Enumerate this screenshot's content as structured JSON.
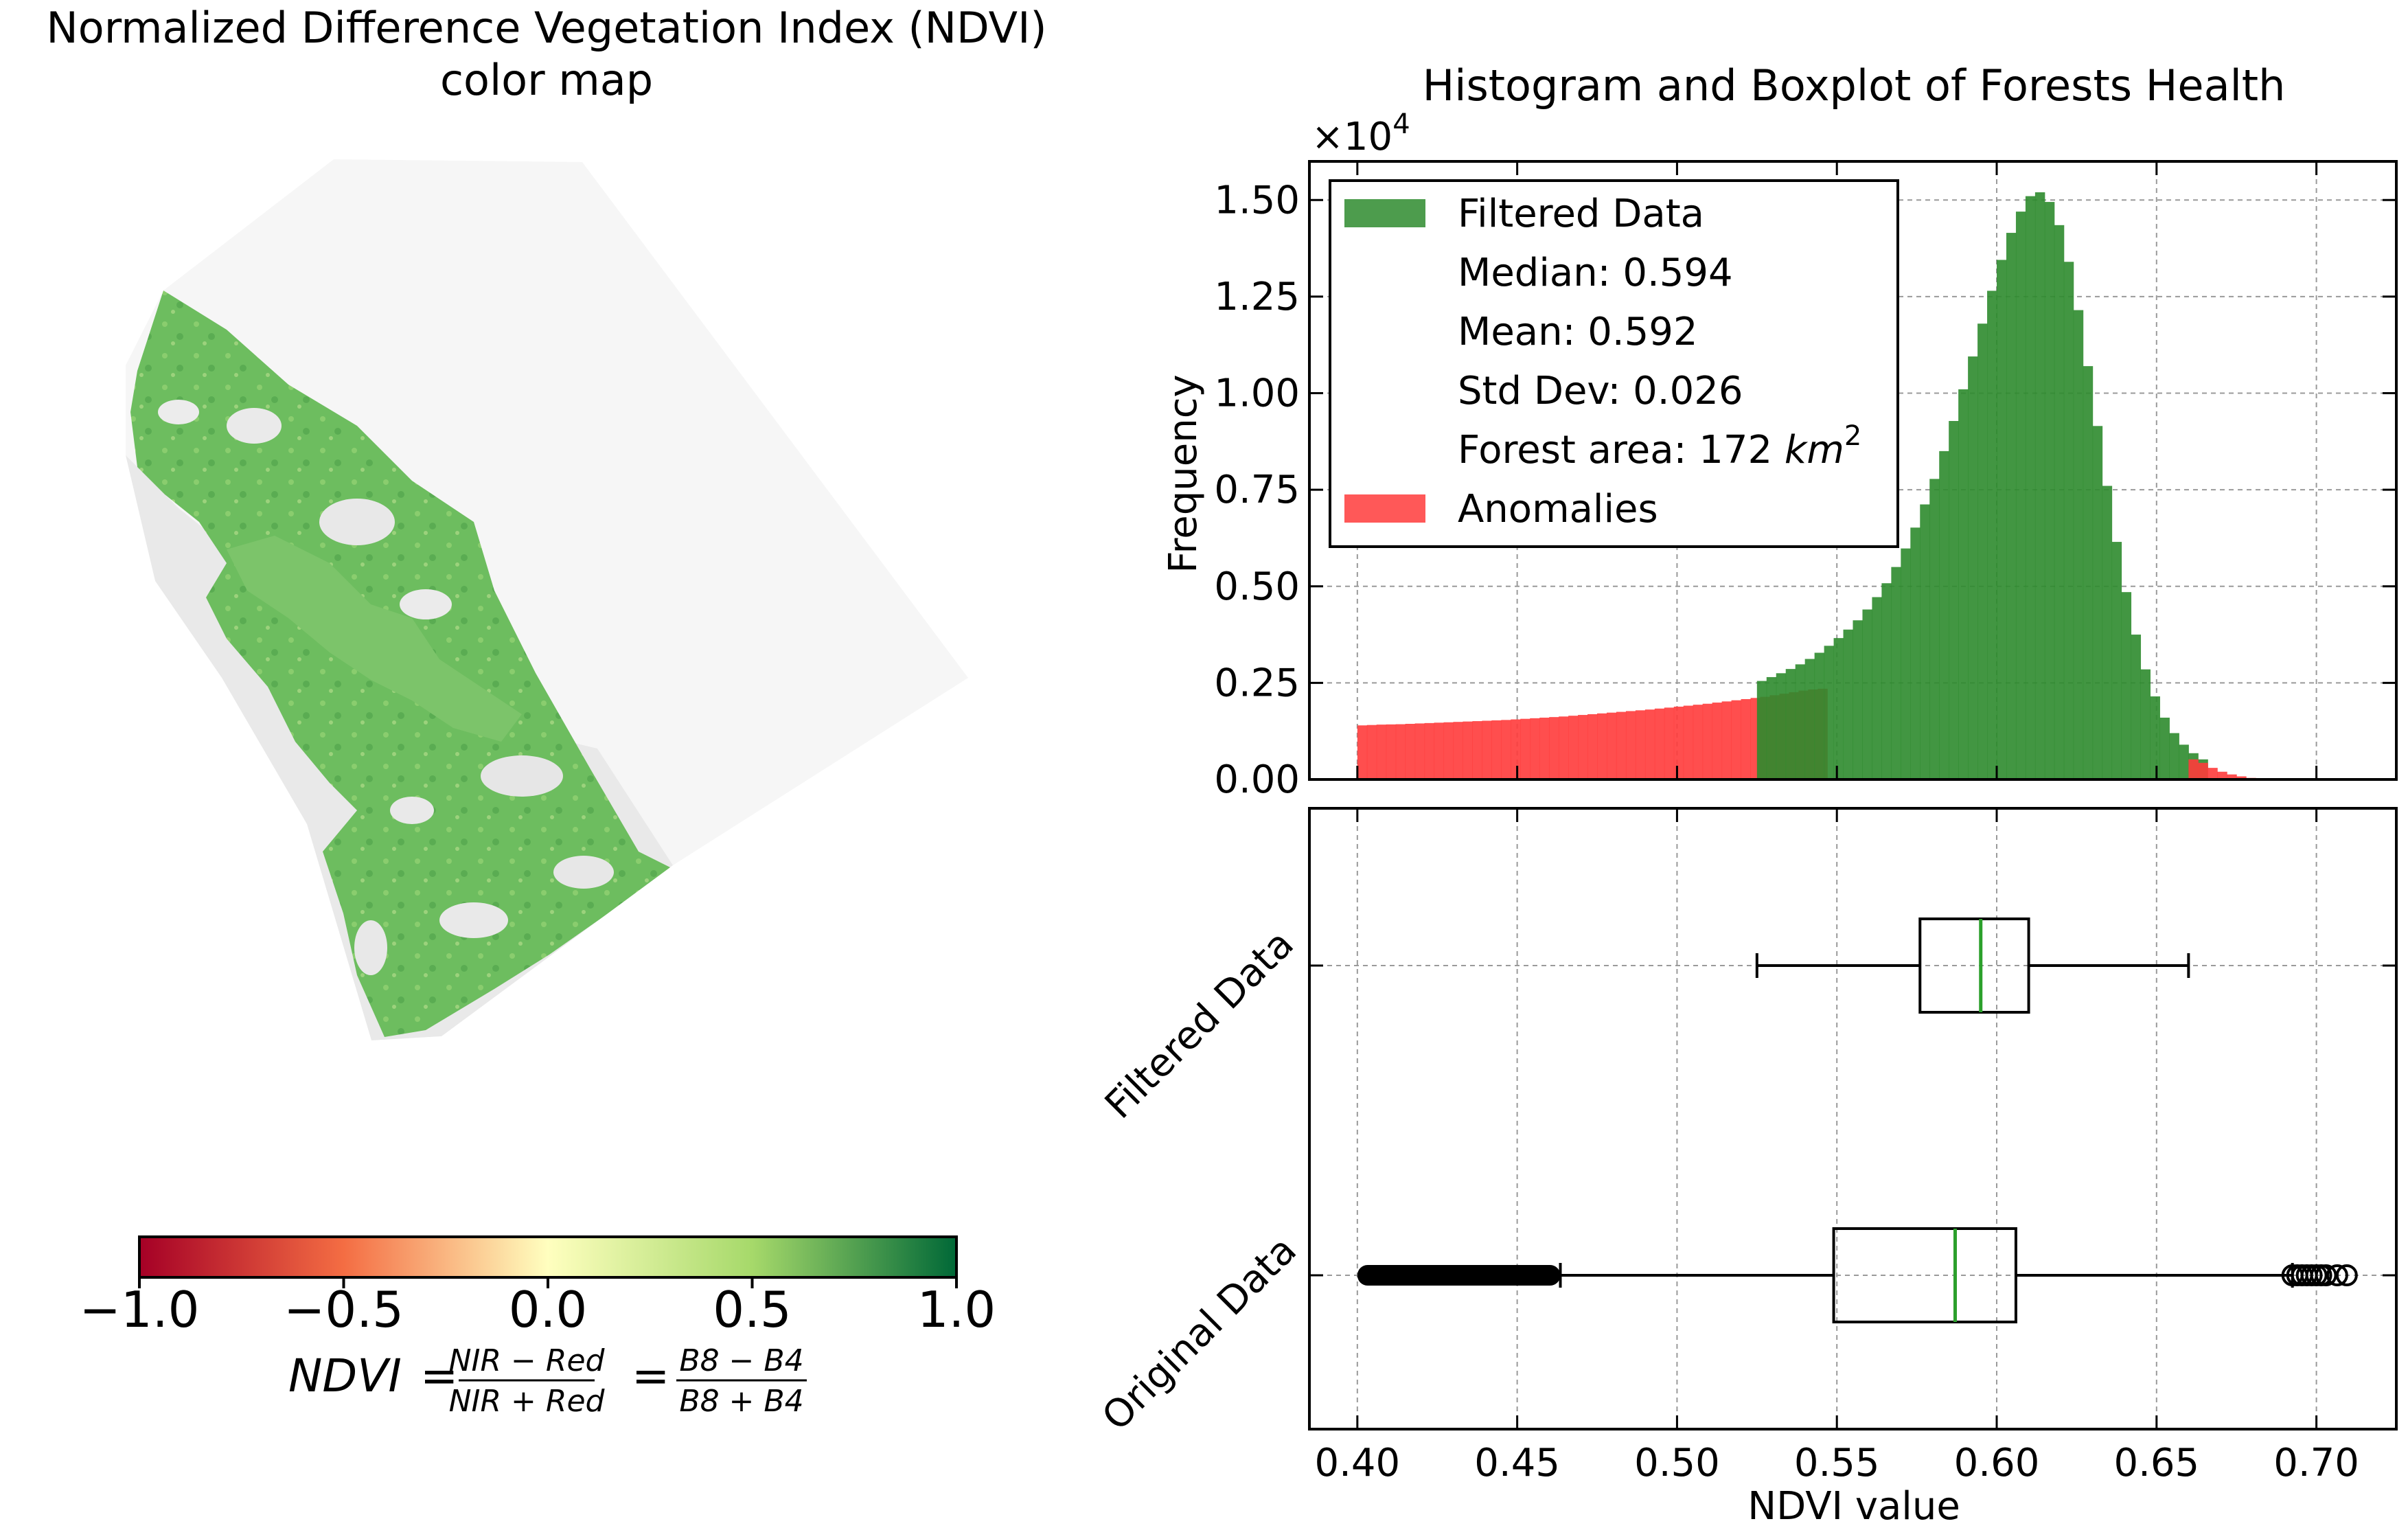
{
  "map_panel": {
    "title_line1": "Normalized Difference Vegetation Index (NDVI)",
    "title_line2": "color map",
    "colorbar": {
      "ticks": [
        "−1.0",
        "−0.5",
        "0.0",
        "0.5",
        "1.0"
      ],
      "colors": [
        "#a50026",
        "#f46d43",
        "#ffffbf",
        "#a6d96a",
        "#006837"
      ]
    },
    "formula": {
      "lhs": "NDVI",
      "num1": "NIR − Red",
      "den1": "NIR + Red",
      "num2": "B8 − B4",
      "den2": "B8 + B4"
    }
  },
  "chart_data": [
    {
      "type": "bar",
      "title": "Histogram and Boxplot of Forests Health",
      "xlabel": "",
      "ylabel": "Frequency",
      "multiplier": "×10",
      "multiplier_exp": "4",
      "xlim": [
        0.385,
        0.725
      ],
      "ylim": [
        0,
        16000
      ],
      "yticks": [
        0,
        2500,
        5000,
        7500,
        10000,
        12500,
        15000
      ],
      "ytick_labels": [
        "0.00",
        "0.25",
        "0.50",
        "0.75",
        "1.00",
        "1.25",
        "1.50"
      ],
      "grid": true,
      "legend": {
        "placement": "top-left",
        "entries": [
          {
            "label": "Filtered Data",
            "color": "#2e8b2e"
          },
          {
            "label": "Median: 0.594",
            "color": null
          },
          {
            "label": "Mean: 0.592",
            "color": null
          },
          {
            "label": "Std Dev: 0.026",
            "color": null
          },
          {
            "label": "Forest area: 172 ",
            "math": "km",
            "sup": "2",
            "color": null
          },
          {
            "label": "Anomalies",
            "color": "#ff3b3b"
          }
        ]
      },
      "bin_width": 0.003,
      "series": [
        {
          "name": "Anomalies",
          "color": "#ff3b3b",
          "x_start": 0.4,
          "values": [
            1400,
            1410,
            1420,
            1425,
            1430,
            1440,
            1450,
            1460,
            1470,
            1480,
            1490,
            1500,
            1510,
            1520,
            1530,
            1540,
            1555,
            1570,
            1585,
            1600,
            1615,
            1630,
            1650,
            1670,
            1690,
            1710,
            1730,
            1750,
            1770,
            1790,
            1810,
            1835,
            1860,
            1885,
            1910,
            1935,
            1960,
            1990,
            2020,
            2050,
            2080,
            2110,
            2140,
            2180,
            2220,
            2260,
            2300,
            2330,
            2350
          ]
        },
        {
          "name": "Filtered Data",
          "color": "#2e8b2e",
          "x_start": 0.525,
          "values": [
            2550,
            2650,
            2750,
            2860,
            2980,
            3120,
            3280,
            3460,
            3660,
            3880,
            4120,
            4400,
            4720,
            5080,
            5500,
            5980,
            6520,
            7120,
            7780,
            8500,
            9280,
            10100,
            10950,
            11800,
            12650,
            13450,
            14150,
            14700,
            15100,
            15200,
            14950,
            14350,
            13400,
            12150,
            10700,
            9150,
            7600,
            6150,
            4850,
            3750,
            2850,
            2150,
            1600,
            1200,
            900,
            680,
            520
          ]
        },
        {
          "name": "Anomalies (upper)",
          "color": "#ff3b3b",
          "x_start": 0.66,
          "values": [
            520,
            430,
            300,
            200,
            130,
            80,
            40,
            15
          ]
        }
      ]
    },
    {
      "type": "box",
      "xlabel": "NDVI value",
      "xlim": [
        0.385,
        0.725
      ],
      "xticks": [
        0.4,
        0.45,
        0.5,
        0.55,
        0.6,
        0.65,
        0.7
      ],
      "xtick_labels": [
        "0.40",
        "0.45",
        "0.50",
        "0.55",
        "0.60",
        "0.65",
        "0.70"
      ],
      "grid": true,
      "median_color": "#2ca02c",
      "boxes": [
        {
          "label": "Filtered Data",
          "whisker_low": 0.525,
          "q1": 0.576,
          "median": 0.595,
          "q3": 0.61,
          "whisker_high": 0.66,
          "outliers_low": [],
          "outliers_high": []
        },
        {
          "label": "Original Data",
          "whisker_low": 0.4635,
          "q1": 0.549,
          "median": 0.587,
          "q3": 0.606,
          "whisker_high": 0.6925,
          "outliers_low_range": [
            0.4,
            0.4635
          ],
          "outliers_high": [
            0.6925,
            0.694,
            0.6955,
            0.697,
            0.6985,
            0.7,
            0.7015,
            0.703,
            0.7065,
            0.7095
          ]
        }
      ]
    }
  ]
}
